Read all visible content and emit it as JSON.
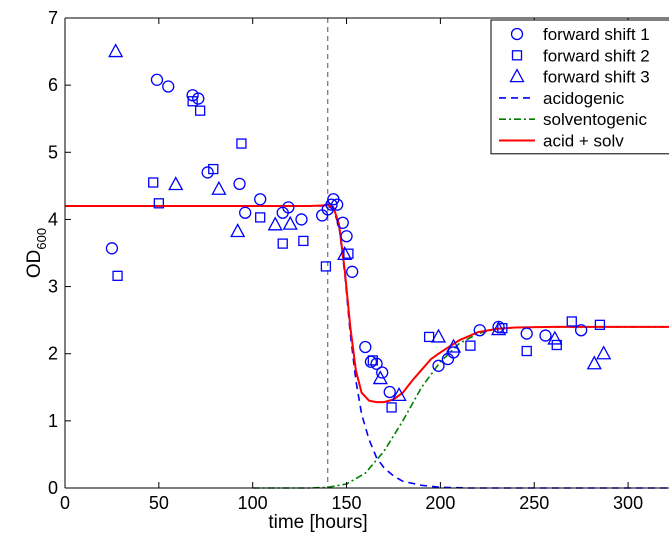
{
  "chart_data": {
    "type": "scatter",
    "title": "",
    "xlabel": "time [hours]",
    "ylabel": "OD",
    "ylabel_sub": "600",
    "xlim": [
      0,
      325
    ],
    "ylim": [
      0,
      7
    ],
    "xticks": [
      "0",
      "50",
      "100",
      "150",
      "200",
      "250",
      "300"
    ],
    "yticks": [
      "0",
      "1",
      "2",
      "3",
      "4",
      "5",
      "6",
      "7"
    ],
    "grid": false,
    "legend_position": "top-right",
    "vline_x": 140,
    "colors": {
      "markers": "#0000ff",
      "acidogenic": "#0000ff",
      "solventogenic": "#007f00",
      "acid_solv": "#ff0000",
      "vline": "#555555"
    },
    "scatter_series": [
      {
        "name": "forward shift 1",
        "marker": "circle",
        "points": [
          [
            25,
            3.57
          ],
          [
            49,
            6.08
          ],
          [
            55,
            5.98
          ],
          [
            68,
            5.85
          ],
          [
            71,
            5.8
          ],
          [
            76,
            4.7
          ],
          [
            93,
            4.53
          ],
          [
            96,
            4.1
          ],
          [
            104,
            4.3
          ],
          [
            116,
            4.1
          ],
          [
            119,
            4.18
          ],
          [
            126,
            4.0
          ],
          [
            137,
            4.06
          ],
          [
            140,
            4.15
          ],
          [
            142,
            4.22
          ],
          [
            143,
            4.3
          ],
          [
            145,
            4.22
          ],
          [
            148,
            3.95
          ],
          [
            150,
            3.75
          ],
          [
            153,
            3.22
          ],
          [
            160,
            2.1
          ],
          [
            163,
            1.88
          ],
          [
            166,
            1.85
          ],
          [
            169,
            1.72
          ],
          [
            173,
            1.43
          ],
          [
            199,
            1.82
          ],
          [
            204,
            1.92
          ],
          [
            207,
            2.02
          ],
          [
            221,
            2.35
          ],
          [
            231,
            2.4
          ],
          [
            246,
            2.3
          ],
          [
            256,
            2.27
          ],
          [
            275,
            2.35
          ]
        ]
      },
      {
        "name": "forward shift 2",
        "marker": "square",
        "points": [
          [
            28,
            3.16
          ],
          [
            47,
            4.55
          ],
          [
            50,
            4.24
          ],
          [
            68,
            5.76
          ],
          [
            72,
            5.62
          ],
          [
            79,
            4.75
          ],
          [
            94,
            5.13
          ],
          [
            104,
            4.03
          ],
          [
            116,
            3.64
          ],
          [
            127,
            3.68
          ],
          [
            139,
            3.3
          ],
          [
            151,
            3.49
          ],
          [
            164,
            1.9
          ],
          [
            174,
            1.2
          ],
          [
            194,
            2.25
          ],
          [
            216,
            2.12
          ],
          [
            233,
            2.38
          ],
          [
            246,
            2.04
          ],
          [
            262,
            2.13
          ],
          [
            270,
            2.48
          ],
          [
            285,
            2.43
          ]
        ]
      },
      {
        "name": "forward shift 3",
        "marker": "triangle",
        "points": [
          [
            27,
            6.5
          ],
          [
            59,
            4.52
          ],
          [
            82,
            4.45
          ],
          [
            92,
            3.82
          ],
          [
            112,
            3.92
          ],
          [
            120,
            3.93
          ],
          [
            149,
            3.48
          ],
          [
            168,
            1.63
          ],
          [
            178,
            1.38
          ],
          [
            199,
            2.25
          ],
          [
            207,
            2.1
          ],
          [
            231,
            2.36
          ],
          [
            261,
            2.22
          ],
          [
            282,
            1.85
          ],
          [
            287,
            2.0
          ]
        ]
      }
    ],
    "line_series": [
      {
        "name": "acidogenic",
        "style": "dashed",
        "points": [
          [
            0,
            4.2
          ],
          [
            100,
            4.2
          ],
          [
            130,
            4.2
          ],
          [
            140,
            4.2
          ],
          [
            143,
            4.15
          ],
          [
            146,
            3.9
          ],
          [
            149,
            3.2
          ],
          [
            152,
            2.3
          ],
          [
            155,
            1.6
          ],
          [
            158,
            1.1
          ],
          [
            162,
            0.72
          ],
          [
            166,
            0.45
          ],
          [
            170,
            0.3
          ],
          [
            175,
            0.18
          ],
          [
            180,
            0.1
          ],
          [
            190,
            0.04
          ],
          [
            200,
            0.01
          ],
          [
            215,
            0.0
          ],
          [
            325,
            0.0
          ]
        ]
      },
      {
        "name": "solventogenic",
        "style": "dashdot",
        "points": [
          [
            100,
            0.0
          ],
          [
            130,
            0.0
          ],
          [
            140,
            0.01
          ],
          [
            150,
            0.06
          ],
          [
            160,
            0.22
          ],
          [
            170,
            0.55
          ],
          [
            180,
            1.0
          ],
          [
            190,
            1.5
          ],
          [
            200,
            1.88
          ],
          [
            210,
            2.15
          ],
          [
            220,
            2.3
          ],
          [
            230,
            2.37
          ],
          [
            240,
            2.39
          ],
          [
            260,
            2.4
          ],
          [
            325,
            2.4
          ]
        ]
      },
      {
        "name": "acid + solv",
        "style": "solid",
        "points": [
          [
            0,
            4.2
          ],
          [
            100,
            4.2
          ],
          [
            130,
            4.2
          ],
          [
            140,
            4.21
          ],
          [
            143,
            4.18
          ],
          [
            146,
            3.93
          ],
          [
            149,
            3.25
          ],
          [
            152,
            2.4
          ],
          [
            155,
            1.75
          ],
          [
            158,
            1.42
          ],
          [
            162,
            1.3
          ],
          [
            166,
            1.28
          ],
          [
            170,
            1.28
          ],
          [
            175,
            1.32
          ],
          [
            180,
            1.42
          ],
          [
            185,
            1.6
          ],
          [
            190,
            1.76
          ],
          [
            195,
            1.92
          ],
          [
            200,
            2.02
          ],
          [
            210,
            2.2
          ],
          [
            220,
            2.32
          ],
          [
            230,
            2.37
          ],
          [
            240,
            2.39
          ],
          [
            260,
            2.4
          ],
          [
            325,
            2.4
          ]
        ]
      }
    ],
    "legend": [
      {
        "label": "forward shift 1",
        "kind": "circle"
      },
      {
        "label": "forward shift 2",
        "kind": "square"
      },
      {
        "label": "forward shift 3",
        "kind": "triangle"
      },
      {
        "label": "acidogenic",
        "kind": "dashed"
      },
      {
        "label": "solventogenic",
        "kind": "dashdot"
      },
      {
        "label": "acid + solv",
        "kind": "solid"
      }
    ]
  }
}
